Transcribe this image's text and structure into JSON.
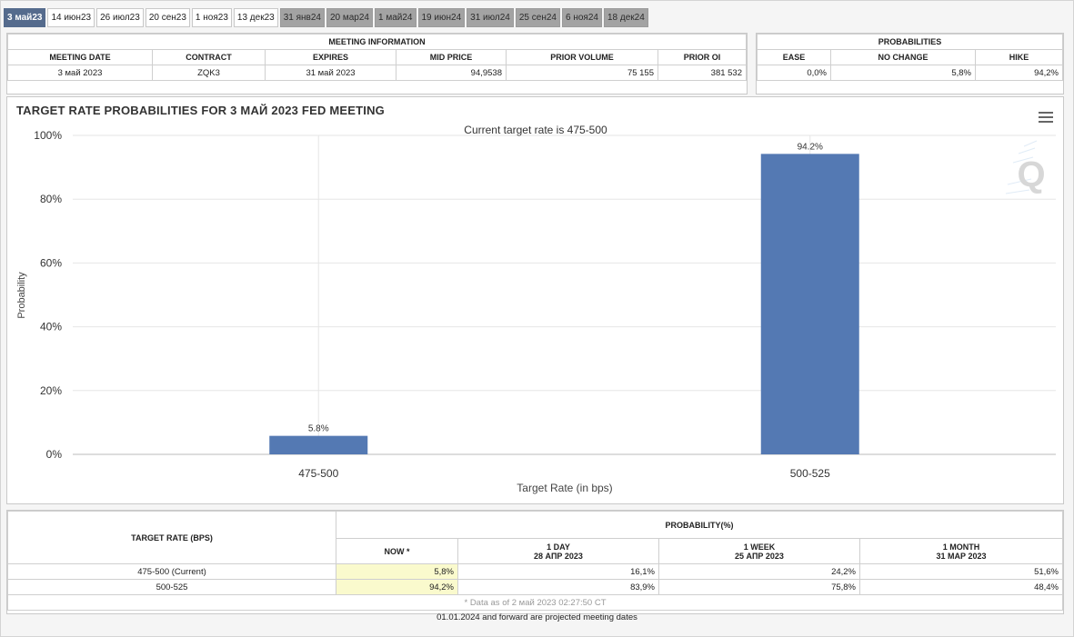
{
  "tabs": [
    {
      "label": "3 май23",
      "state": "active"
    },
    {
      "label": "14 июн23",
      "state": "normal"
    },
    {
      "label": "26 июл23",
      "state": "normal"
    },
    {
      "label": "20 сен23",
      "state": "normal"
    },
    {
      "label": "1 ноя23",
      "state": "normal"
    },
    {
      "label": "13 дек23",
      "state": "normal"
    },
    {
      "label": "31 янв24",
      "state": "future"
    },
    {
      "label": "20 мар24",
      "state": "future"
    },
    {
      "label": "1 май24",
      "state": "future"
    },
    {
      "label": "19 июн24",
      "state": "future"
    },
    {
      "label": "31 июл24",
      "state": "future"
    },
    {
      "label": "25 сен24",
      "state": "future"
    },
    {
      "label": "6 ноя24",
      "state": "future"
    },
    {
      "label": "18 дек24",
      "state": "future"
    }
  ],
  "meeting_info": {
    "title": "MEETING INFORMATION",
    "headers": [
      "MEETING DATE",
      "CONTRACT",
      "EXPIRES",
      "MID PRICE",
      "PRIOR VOLUME",
      "PRIOR OI"
    ],
    "values": [
      "3 май 2023",
      "ZQK3",
      "31 май 2023",
      "94,9538",
      "75 155",
      "381 532"
    ]
  },
  "probabilities": {
    "title": "PROBABILITIES",
    "headers": [
      "EASE",
      "NO CHANGE",
      "HIKE"
    ],
    "values": [
      "0,0%",
      "5,8%",
      "94,2%"
    ]
  },
  "chart": {
    "title": "TARGET RATE PROBABILITIES FOR 3 МАЙ 2023 FED MEETING",
    "subtitle": "Current target rate is 475-500",
    "watermark": "Q",
    "colors": {
      "bar": "#5479b3",
      "grid": "#e6e6e6"
    }
  },
  "chart_data": {
    "type": "bar",
    "title": "TARGET RATE PROBABILITIES FOR 3 МАЙ 2023 FED MEETING",
    "subtitle": "Current target rate is 475-500",
    "categories": [
      "475-500",
      "500-525"
    ],
    "values": [
      5.8,
      94.2
    ],
    "data_labels": [
      "5.8%",
      "94.2%"
    ],
    "xlabel": "Target Rate (in bps)",
    "ylabel": "Probability",
    "ylim": [
      0,
      100
    ],
    "yticks": [
      "0%",
      "20%",
      "40%",
      "60%",
      "80%",
      "100%"
    ],
    "grid": true,
    "legend": "none"
  },
  "bottom_table": {
    "target_rate_header": "TARGET RATE (BPS)",
    "probability_header": "PROBABILITY(%)",
    "columns": [
      {
        "label": "NOW *",
        "sub": ""
      },
      {
        "label": "1 DAY",
        "sub": "28 АПР 2023"
      },
      {
        "label": "1 WEEK",
        "sub": "25 АПР 2023"
      },
      {
        "label": "1 MONTH",
        "sub": "31 МАР 2023"
      }
    ],
    "rows": [
      {
        "rate": "475-500 (Current)",
        "values": [
          "5,8%",
          "16,1%",
          "24,2%",
          "51,6%"
        ]
      },
      {
        "rate": "500-525",
        "values": [
          "94,2%",
          "83,9%",
          "75,8%",
          "48,4%"
        ]
      }
    ],
    "data_note": "* Data as of 2 май 2023 02:27:50 CT"
  },
  "footer": "01.01.2024 and forward are projected meeting dates"
}
